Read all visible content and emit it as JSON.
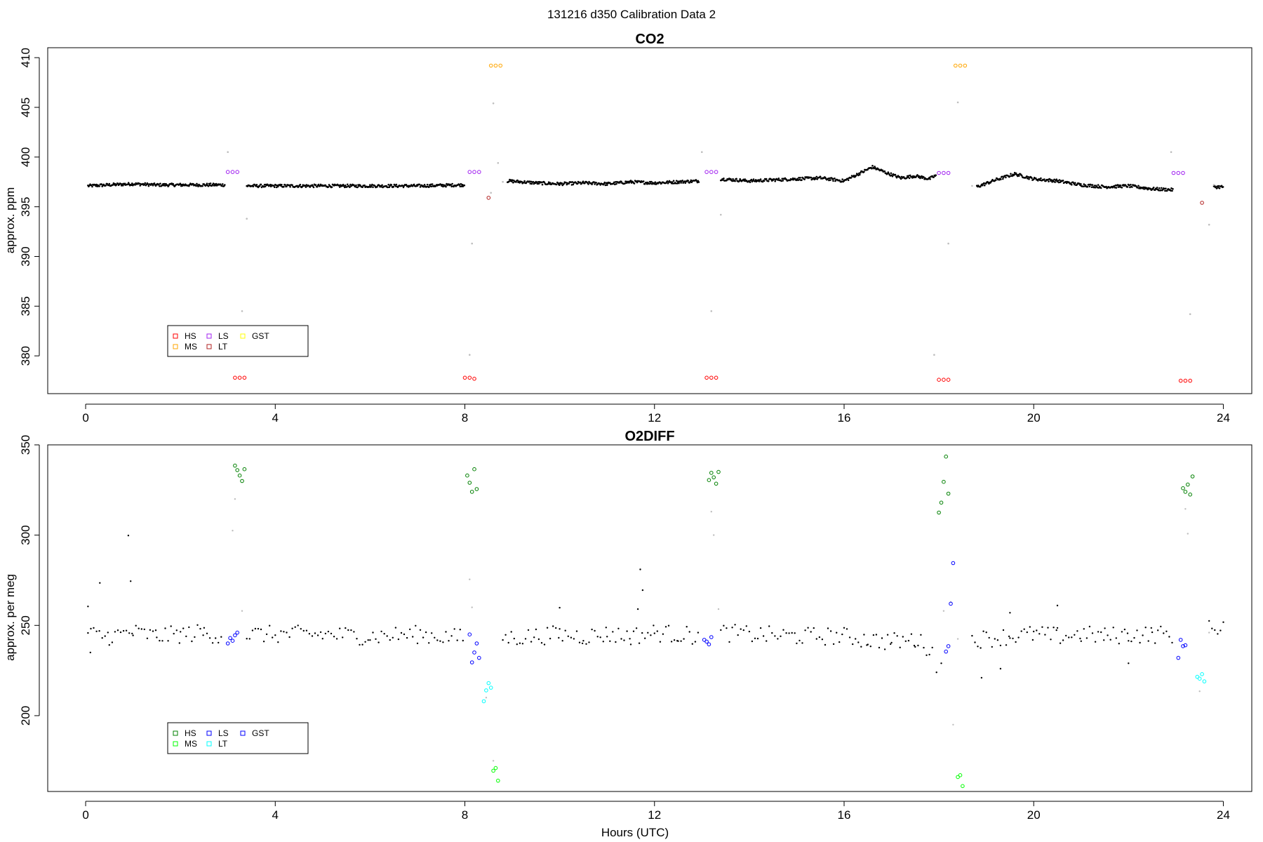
{
  "figure": {
    "suptitle": "131216   d350   Calibration Data 2"
  },
  "chart_data": [
    {
      "type": "scatter",
      "title": "CO2",
      "xlabel": "",
      "ylabel": "approx. ppm",
      "xlim": [
        -0.8,
        24.6
      ],
      "ylim": [
        376.2,
        411.0
      ],
      "xticks": [
        0,
        4,
        8,
        12,
        16,
        20,
        24
      ],
      "yticks": [
        380,
        385,
        390,
        395,
        400,
        405,
        410
      ],
      "legend": {
        "placement": "bottom-left",
        "entries": [
          {
            "label": "HS",
            "color": "#ff0000"
          },
          {
            "label": "MS",
            "color": "#ffa500"
          },
          {
            "label": "LS",
            "color": "#a020f0"
          },
          {
            "label": "LT",
            "color": "#b22222"
          },
          {
            "label": "GST",
            "color": "#ffff00"
          }
        ]
      },
      "series": [
        {
          "name": "",
          "color": "#000000",
          "marker": "dot",
          "segments": [
            {
              "x": [
                0.05,
                0.5,
                1.0,
                1.5,
                2.0,
                2.5,
                2.95
              ],
              "y": [
                397.1,
                397.2,
                397.3,
                397.2,
                397.2,
                397.2,
                397.2
              ]
            },
            {
              "x": [
                3.4,
                4.0,
                5.0,
                6.0,
                7.0,
                8.0
              ],
              "y": [
                397.1,
                397.1,
                397.1,
                397.1,
                397.1,
                397.2
              ]
            },
            {
              "x": [
                8.9,
                9.5,
                10.0,
                10.5,
                11.0,
                11.5,
                12.0,
                12.5,
                12.95
              ],
              "y": [
                397.6,
                397.4,
                397.3,
                397.4,
                397.3,
                397.5,
                397.4,
                397.5,
                397.6
              ]
            },
            {
              "x": [
                13.4,
                14.0,
                14.5,
                15.0,
                15.5,
                16.0,
                16.3,
                16.6,
                16.9,
                17.2,
                17.5,
                17.8,
                17.95
              ],
              "y": [
                397.8,
                397.6,
                397.7,
                397.8,
                397.9,
                397.6,
                398.3,
                399.0,
                398.4,
                397.9,
                398.1,
                397.8,
                398.2
              ]
            },
            {
              "x": [
                18.8,
                19.2,
                19.6,
                20.0,
                20.5,
                21.0,
                21.5,
                22.0,
                22.5,
                22.95
              ],
              "y": [
                397.0,
                397.7,
                398.3,
                397.8,
                397.6,
                397.2,
                397.0,
                397.1,
                396.8,
                396.7
              ]
            },
            {
              "x": [
                23.8,
                24.0
              ],
              "y": [
                397.0,
                397.0
              ]
            }
          ]
        },
        {
          "name": "",
          "color": "#bebebe",
          "marker": "dot",
          "points": {
            "x": [
              3.0,
              3.3,
              3.4,
              8.15,
              8.1,
              8.6,
              8.55,
              8.7,
              8.8,
              13.0,
              13.4,
              13.2,
              17.9,
              18.2,
              18.4,
              18.7,
              22.9,
              23.3,
              23.7,
              23.8
            ],
            "y": [
              400.5,
              384.5,
              393.8,
              391.3,
              380.1,
              405.4,
              396.4,
              399.4,
              397.5,
              400.5,
              394.2,
              384.5,
              380.1,
              391.3,
              405.5,
              397.1,
              400.5,
              384.2,
              393.2,
              397.2
            ]
          }
        },
        {
          "name": "HS",
          "color": "#ff0000",
          "marker": "circle",
          "points": {
            "x": [
              3.15,
              3.25,
              3.35,
              8.0,
              8.1,
              8.2,
              13.1,
              13.2,
              13.3,
              18.0,
              18.1,
              18.2,
              23.1,
              23.2,
              23.3
            ],
            "y": [
              377.8,
              377.8,
              377.8,
              377.8,
              377.8,
              377.7,
              377.8,
              377.8,
              377.8,
              377.6,
              377.6,
              377.6,
              377.5,
              377.5,
              377.5
            ]
          }
        },
        {
          "name": "MS",
          "color": "#ffa500",
          "marker": "circle",
          "points": {
            "x": [
              8.55,
              8.65,
              8.75,
              18.35,
              18.45,
              18.55
            ],
            "y": [
              409.2,
              409.2,
              409.2,
              409.2,
              409.2,
              409.2
            ]
          }
        },
        {
          "name": "LS",
          "color": "#a020f0",
          "marker": "circle",
          "points": {
            "x": [
              3.0,
              3.1,
              3.2,
              8.1,
              8.2,
              8.3,
              13.1,
              13.2,
              13.3,
              18.0,
              18.1,
              18.2,
              22.95,
              23.05,
              23.15
            ],
            "y": [
              398.5,
              398.5,
              398.5,
              398.5,
              398.5,
              398.5,
              398.5,
              398.5,
              398.5,
              398.4,
              398.4,
              398.4,
              398.4,
              398.4,
              398.4
            ]
          }
        },
        {
          "name": "LT",
          "color": "#b22222",
          "marker": "circle",
          "points": {
            "x": [
              8.5,
              23.55
            ],
            "y": [
              395.9,
              395.4
            ]
          }
        }
      ]
    },
    {
      "type": "scatter",
      "title": "O2DIFF",
      "xlabel": "Hours (UTC)",
      "ylabel": "approx. per meg",
      "xlim": [
        -0.8,
        24.6
      ],
      "ylim": [
        158,
        350
      ],
      "xticks": [
        0,
        4,
        8,
        12,
        16,
        20,
        24
      ],
      "yticks": [
        200,
        250,
        300,
        350
      ],
      "legend": {
        "placement": "bottom-left",
        "entries": [
          {
            "label": "HS",
            "color": "#008000"
          },
          {
            "label": "MS",
            "color": "#00ff00"
          },
          {
            "label": "LS",
            "color": "#0000ff"
          },
          {
            "label": "LT",
            "color": "#00ffff"
          },
          {
            "label": "GST",
            "color": "#0000ff"
          }
        ]
      },
      "series": [
        {
          "name": "",
          "color": "#000000",
          "marker": "dot",
          "points": {
            "x": [
              0.05,
              0.1,
              0.3,
              0.9,
              0.95,
              11.7,
              11.75,
              10.0,
              11.65,
              17.95,
              18.05,
              19.5,
              20.5,
              18.9,
              19.3,
              22.0
            ],
            "y": [
              260.5,
              235.0,
              273.5,
              299.8,
              274.5,
              281.0,
              269.5,
              259.8,
              259.0,
              224.0,
              229.0,
              257.0,
              261.0,
              221.0,
              226.0,
              229.0
            ]
          },
          "baseline_segments": [
            {
              "x": [
                0.05,
                0.5,
                1.0,
                1.5,
                2.0,
                2.5,
                2.9
              ],
              "y": [
                245,
                244,
                246,
                244,
                245,
                246,
                244
              ]
            },
            {
              "x": [
                3.4,
                4.0,
                5.0,
                6.0,
                7.0,
                8.0
              ],
              "y": [
                245,
                245,
                245,
                244,
                245,
                243
              ]
            },
            {
              "x": [
                8.8,
                9.5,
                10.0,
                10.5,
                11.0,
                11.5,
                12.0,
                12.5,
                12.95
              ],
              "y": [
                243,
                244,
                245,
                244,
                245,
                244,
                246,
                245,
                244
              ]
            },
            {
              "x": [
                13.4,
                14.0,
                15.0,
                16.0,
                16.5,
                17.0,
                17.5,
                17.9
              ],
              "y": [
                246,
                245,
                244,
                244,
                242,
                241,
                242,
                236
              ]
            },
            {
              "x": [
                18.7,
                19.5,
                20.0,
                20.5,
                21.0,
                21.5,
                22.0,
                22.5,
                22.95
              ],
              "y": [
                242,
                244,
                245,
                244,
                245,
                244,
                245,
                245,
                245
              ]
            },
            {
              "x": [
                23.7,
                24.0
              ],
              "y": [
                248,
                250
              ]
            }
          ]
        },
        {
          "name": "",
          "color": "#bebebe",
          "marker": "dot",
          "points": {
            "x": [
              3.1,
              3.15,
              3.3,
              8.1,
              8.15,
              8.45,
              8.6,
              13.2,
              13.25,
              13.35,
              18.1,
              18.25,
              18.4,
              18.3,
              23.2,
              23.25,
              23.5,
              23.7
            ],
            "y": [
              302.5,
              320.0,
              258.0,
              275.5,
              260.0,
              210.0,
              175.0,
              313.0,
              300.0,
              259.0,
              258.0,
              263.0,
              242.5,
              195.0,
              314.5,
              300.8,
              213.5,
              246.0
            ]
          }
        },
        {
          "name": "HS",
          "color": "#008000",
          "marker": "circle",
          "points": {
            "x": [
              3.15,
              3.2,
              3.25,
              3.3,
              3.35,
              8.05,
              8.1,
              8.15,
              8.2,
              8.25,
              13.15,
              13.2,
              13.25,
              13.3,
              13.35,
              18.0,
              18.05,
              18.1,
              18.15,
              18.2,
              23.15,
              23.2,
              23.25,
              23.3,
              23.35
            ],
            "y": [
              338.5,
              336.0,
              333.0,
              330.0,
              336.5,
              333.0,
              329.0,
              324.0,
              336.5,
              325.5,
              330.5,
              334.5,
              332.0,
              328.5,
              335.0,
              312.5,
              318.0,
              329.5,
              343.5,
              323.0,
              326.0,
              324.0,
              328.0,
              322.5,
              332.5
            ]
          }
        },
        {
          "name": "MS",
          "color": "#00ff00",
          "marker": "circle",
          "points": {
            "x": [
              8.6,
              8.65,
              8.7,
              18.4,
              18.45,
              18.5
            ],
            "y": [
              169.5,
              171.0,
              164.0,
              166.0,
              167.0,
              161.0
            ]
          }
        },
        {
          "name": "LS",
          "color": "#0000ff",
          "marker": "circle",
          "points": {
            "x": [
              3.0,
              3.05,
              3.1,
              3.15,
              3.2,
              8.1,
              8.15,
              8.2,
              8.25,
              8.3,
              13.05,
              13.1,
              13.15,
              13.2,
              18.15,
              18.2,
              18.25,
              18.3,
              23.05,
              23.1,
              23.15,
              23.2
            ],
            "y": [
              240.0,
              243.0,
              241.5,
              244.5,
              246.0,
              245.0,
              229.5,
              235.0,
              240.0,
              232.0,
              242.0,
              241.0,
              239.5,
              243.5,
              235.5,
              238.5,
              262.0,
              284.5,
              232.0,
              242.0,
              238.5,
              239.0
            ]
          }
        },
        {
          "name": "LT",
          "color": "#00ffff",
          "marker": "circle",
          "points": {
            "x": [
              8.4,
              8.45,
              8.5,
              8.55,
              23.45,
              23.5,
              23.55,
              23.6
            ],
            "y": [
              208.0,
              214.0,
              218.0,
              215.5,
              221.5,
              220.5,
              223.0,
              219.0
            ]
          }
        }
      ]
    }
  ]
}
